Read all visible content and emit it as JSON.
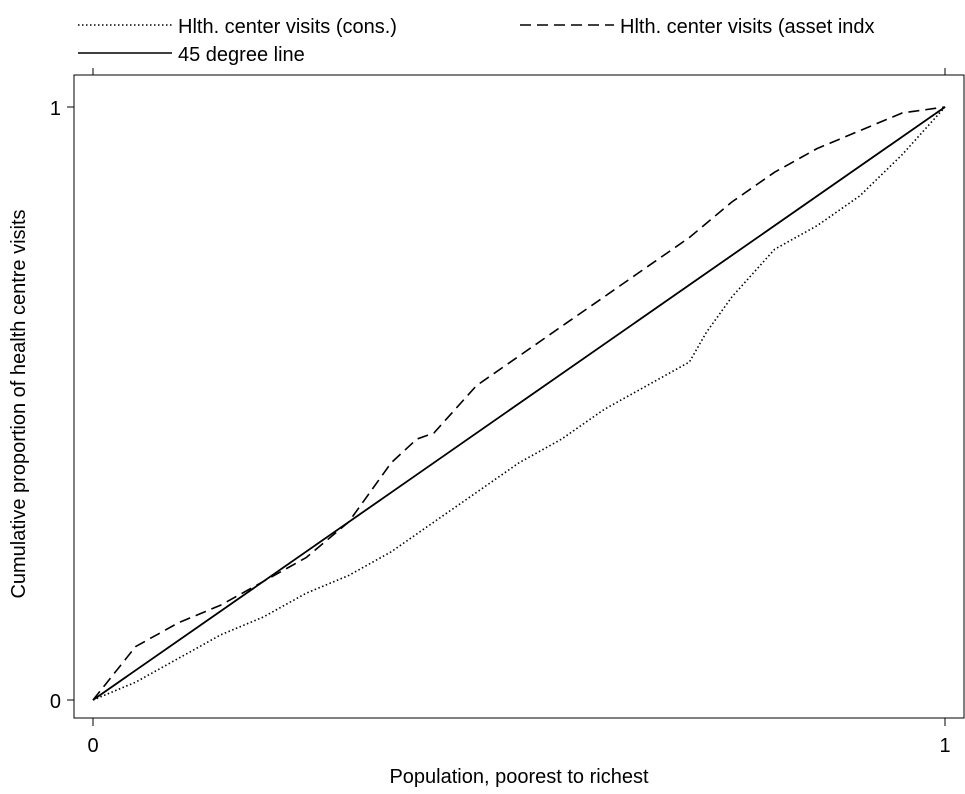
{
  "chart_data": {
    "type": "line",
    "title": "",
    "xlabel": "Population, poorest to richest",
    "ylabel": "Cumulative proportion of health centre visits",
    "xlim": [
      0,
      1
    ],
    "ylim": [
      0,
      1
    ],
    "x_ticks": [
      "0",
      "1"
    ],
    "y_ticks": [
      "0",
      "1"
    ],
    "grid": false,
    "legend_position": "top",
    "series": [
      {
        "name": "Hlth. center visits (cons.)",
        "style": "dotted",
        "color": "#000000",
        "x": [
          0,
          0.05,
          0.1,
          0.15,
          0.2,
          0.25,
          0.3,
          0.35,
          0.4,
          0.45,
          0.5,
          0.55,
          0.6,
          0.65,
          0.7,
          0.72,
          0.75,
          0.8,
          0.85,
          0.9,
          0.95,
          1.0
        ],
        "y": [
          0,
          0.03,
          0.07,
          0.11,
          0.14,
          0.18,
          0.21,
          0.25,
          0.3,
          0.35,
          0.4,
          0.44,
          0.49,
          0.53,
          0.57,
          0.62,
          0.68,
          0.76,
          0.8,
          0.85,
          0.92,
          1.0
        ]
      },
      {
        "name": "Hlth. center visits (asset indx",
        "style": "dashed",
        "color": "#000000",
        "x": [
          0,
          0.05,
          0.1,
          0.15,
          0.2,
          0.25,
          0.3,
          0.35,
          0.38,
          0.4,
          0.45,
          0.5,
          0.55,
          0.6,
          0.65,
          0.7,
          0.75,
          0.8,
          0.85,
          0.9,
          0.95,
          1.0
        ],
        "y": [
          0,
          0.09,
          0.13,
          0.16,
          0.2,
          0.24,
          0.3,
          0.4,
          0.44,
          0.45,
          0.53,
          0.58,
          0.63,
          0.68,
          0.73,
          0.78,
          0.84,
          0.89,
          0.93,
          0.96,
          0.99,
          1.0
        ]
      },
      {
        "name": "45 degree line",
        "style": "solid",
        "color": "#000000",
        "x": [
          0,
          1
        ],
        "y": [
          0,
          1
        ]
      }
    ]
  }
}
